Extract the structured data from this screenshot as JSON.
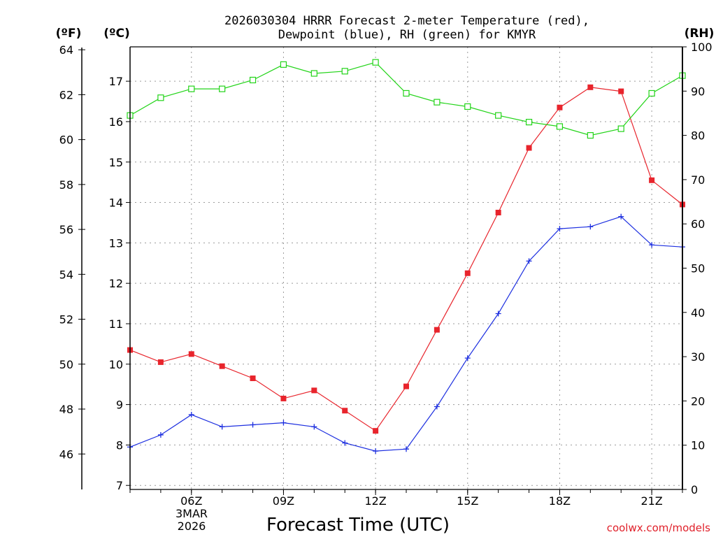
{
  "chart_data": {
    "type": "line",
    "title": "2026030304 HRRR Forecast 2-meter Temperature (red),",
    "subtitle": "Dewpoint (blue), RH (green) for KMYR",
    "xlabel": "Forecast Time (UTC)",
    "date_label": {
      "line1": "3MAR",
      "line2": "2026"
    },
    "credit": "coolwx.com/models",
    "units": {
      "left_outer": "(ºF)",
      "left_inner": "(ºC)",
      "right": "(RH)"
    },
    "x_hours": [
      4,
      5,
      6,
      7,
      8,
      9,
      10,
      11,
      12,
      13,
      14,
      15,
      16,
      17,
      18,
      19,
      20,
      21,
      22
    ],
    "x_ticks": [
      {
        "hour": 6,
        "label": "06Z"
      },
      {
        "hour": 9,
        "label": "09Z"
      },
      {
        "hour": 12,
        "label": "12Z"
      },
      {
        "hour": 15,
        "label": "15Z"
      },
      {
        "hour": 18,
        "label": "18Z"
      },
      {
        "hour": 21,
        "label": "21Z"
      }
    ],
    "xlim": [
      4,
      22
    ],
    "celsius_axis": {
      "ylim": [
        6.9,
        17.85
      ],
      "ticks": [
        "7",
        "8",
        "9",
        "10",
        "11",
        "12",
        "13",
        "14",
        "15",
        "16",
        "17"
      ]
    },
    "fahrenheit_axis": {
      "ticks": [
        "46",
        "48",
        "50",
        "52",
        "54",
        "56",
        "58",
        "60",
        "62",
        "64"
      ]
    },
    "rh_axis": {
      "ylim": [
        0,
        100
      ],
      "ticks": [
        "0",
        "10",
        "20",
        "30",
        "40",
        "50",
        "60",
        "70",
        "80",
        "90",
        "100"
      ]
    },
    "series": [
      {
        "name": "Temperature",
        "unit": "C",
        "color": "#e8242c",
        "marker": "filled-square",
        "values": [
          10.35,
          10.05,
          10.25,
          9.95,
          9.65,
          9.15,
          9.35,
          8.85,
          8.35,
          9.45,
          10.85,
          12.25,
          13.75,
          15.35,
          16.35,
          16.85,
          16.75,
          14.55,
          13.95
        ]
      },
      {
        "name": "Dewpoint",
        "unit": "C",
        "color": "#1d2fe0",
        "marker": "plus",
        "values": [
          7.95,
          8.25,
          8.75,
          8.45,
          8.5,
          8.55,
          8.45,
          8.05,
          7.85,
          7.9,
          8.95,
          10.15,
          11.25,
          12.55,
          13.35,
          13.4,
          13.65,
          12.95,
          12.9
        ]
      },
      {
        "name": "RH",
        "unit": "%",
        "color": "#22d418",
        "marker": "open-square",
        "values": [
          84.5,
          88.5,
          90.5,
          90.5,
          92.5,
          96.0,
          94.0,
          94.5,
          96.5,
          89.5,
          87.5,
          86.5,
          84.5,
          83.0,
          82.0,
          80.0,
          81.5,
          89.5,
          93.5
        ]
      }
    ]
  }
}
